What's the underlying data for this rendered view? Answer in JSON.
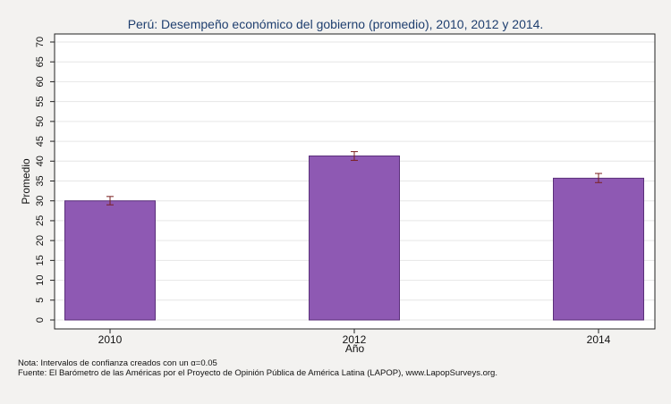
{
  "chart_data": {
    "type": "bar",
    "title": "Perú: Desempeño económico del gobierno (promedio), 2010, 2012 y 2014.",
    "xlabel": "Año",
    "ylabel": "Promedio",
    "categories": [
      "2010",
      "2012",
      "2014"
    ],
    "values": [
      30.0,
      41.3,
      35.7
    ],
    "error_bars": [
      {
        "low": 29.0,
        "high": 31.1
      },
      {
        "low": 40.2,
        "high": 42.4
      },
      {
        "low": 34.6,
        "high": 36.9
      }
    ],
    "ylim": [
      0,
      70
    ],
    "yticks": [
      "0",
      "5",
      "10",
      "15",
      "20",
      "25",
      "30",
      "35",
      "40",
      "45",
      "50",
      "55",
      "60",
      "65",
      "70"
    ],
    "grid": true,
    "bar_color": "#8e59b3",
    "bar_border_color": "#5a2f7a",
    "error_bar_color": "#7a1f1f",
    "title_color": "#1f3f6f",
    "plot_background": "#ffffff"
  },
  "notes": {
    "note": "Nota: Intervalos de confianza creados con un α=0.05",
    "source": "Fuente: El Barómetro de las Américas por el Proyecto de Opinión Pública de América Latina (LAPOP), www.LapopSurveys.org."
  }
}
